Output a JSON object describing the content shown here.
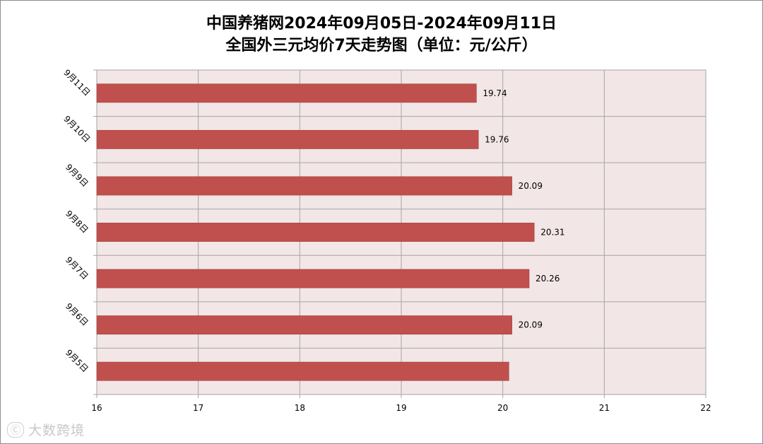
{
  "chart_data": {
    "type": "bar",
    "orientation": "horizontal",
    "title": "中国养猪网2024年09月05日-2024年09月11日",
    "subtitle": "全国外三元均价7天走势图（单位：元/公斤）",
    "categories": [
      "9月11日",
      "9月10日",
      "9月9日",
      "9月8日",
      "9月7日",
      "9月6日",
      "9月5日"
    ],
    "values": [
      19.74,
      19.76,
      20.09,
      20.31,
      20.26,
      20.09,
      20.06
    ],
    "data_labels": [
      "19.74",
      "19.76",
      "20.09",
      "20.31",
      "20.26",
      "20.09",
      ""
    ],
    "xlim": [
      16,
      22
    ],
    "xticks": [
      "16",
      "17",
      "18",
      "19",
      "20",
      "21",
      "22"
    ],
    "grid": true,
    "legend": "none"
  },
  "colors": {
    "bar": "#c0504d",
    "plot_background": "#f2e6e6",
    "grid": "#a6a6a6",
    "text": "#000000"
  },
  "watermark": {
    "logo_text": "Ⓒ",
    "text": "大数跨境"
  }
}
